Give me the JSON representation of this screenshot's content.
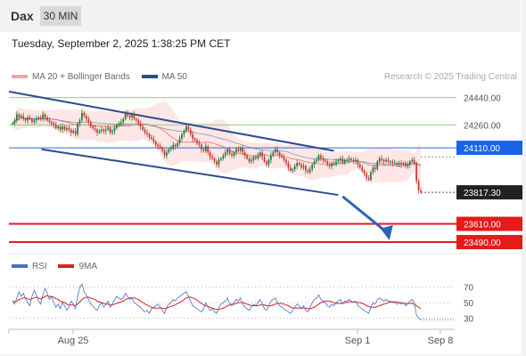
{
  "header": {
    "symbol": "Dax",
    "timeframe": "30 MIN",
    "timestamp": "Tuesday, September 2, 2025 1:38:25 PM CET"
  },
  "legend": {
    "ma20_label": "MA 20 + Bollinger Bands",
    "ma50_label": "MA 50",
    "credit": "Research © 2025 Trading Central"
  },
  "rsi_legend": {
    "rsi_label": "RSI",
    "ma_label": "9MA"
  },
  "colors": {
    "candle_up": "#1a7a3a",
    "candle_down": "#c0392b",
    "ma20": "#f08080",
    "ma50": "#2d4b8e",
    "bollinger_fill": "#fde3e3",
    "channel": "#2d4b8e",
    "resistance_green": "#8fcf7a",
    "resistance_blue": "#2a6fd1",
    "support_red": "#e31b1b",
    "label_blue": "#1a62e8",
    "label_red": "#e31b1b",
    "label_current": "#222222",
    "rsi_line": "#4a6fc1",
    "rsi_ma": "#d62020"
  },
  "chart_data": [
    {
      "type": "candlestick",
      "title": "",
      "ylim": [
        23420,
        24520
      ],
      "x_ticks": [
        "Aug 25",
        "Sep 1",
        "Sep 8"
      ],
      "current_price": {
        "value": 23817.3,
        "label": "23817.30"
      },
      "levels": [
        {
          "value": 24440.0,
          "label": "24440.00",
          "kind": "resistance",
          "color": "green"
        },
        {
          "value": 24260.0,
          "label": "24260.00",
          "kind": "resistance",
          "color": "green"
        },
        {
          "value": 24110.0,
          "label": "24110.00",
          "kind": "pivot",
          "color": "blue"
        },
        {
          "value": 23610.0,
          "label": "23610.00",
          "kind": "support",
          "color": "red"
        },
        {
          "value": 23490.0,
          "label": "23490.00",
          "kind": "support",
          "color": "red"
        }
      ],
      "channel": {
        "upper": [
          [
            0,
            24480
          ],
          [
            148,
            24090
          ]
        ],
        "lower": [
          [
            15,
            24100
          ],
          [
            150,
            23800
          ]
        ]
      },
      "forecast_arrow": [
        [
          152,
          23790
        ],
        [
          160,
          23520
        ]
      ],
      "candles_close": [
        24270,
        24290,
        24330,
        24310,
        24320,
        24300,
        24290,
        24310,
        24300,
        24280,
        24290,
        24300,
        24310,
        24300,
        24330,
        24310,
        24290,
        24280,
        24270,
        24260,
        24240,
        24250,
        24230,
        24250,
        24230,
        24240,
        24230,
        24210,
        24220,
        24200,
        24270,
        24290,
        24340,
        24320,
        24300,
        24280,
        24250,
        24240,
        24230,
        24210,
        24220,
        24230,
        24220,
        24230,
        24240,
        24210,
        24220,
        24240,
        24260,
        24270,
        24280,
        24300,
        24340,
        24320,
        24310,
        24330,
        24300,
        24290,
        24270,
        24250,
        24230,
        24210,
        24200,
        24180,
        24170,
        24150,
        24130,
        24120,
        24110,
        24090,
        24060,
        24080,
        24100,
        24110,
        24130,
        24120,
        24140,
        24170,
        24200,
        24220,
        24250,
        24230,
        24200,
        24170,
        24160,
        24140,
        24130,
        24100,
        24090,
        24120,
        24080,
        24050,
        24040,
        24020,
        24000,
        24030,
        24040,
        24060,
        24080,
        24100,
        24070,
        24060,
        24080,
        24100,
        24090,
        24110,
        24080,
        24060,
        24040,
        24020,
        24030,
        24050,
        24040,
        24060,
        24080,
        24050,
        24020,
        24000,
        24030,
        24060,
        24080,
        24100,
        24080,
        24060,
        24050,
        24030,
        24010,
        23980,
        23960,
        23970,
        23990,
        24010,
        24000,
        23980,
        23990,
        23960,
        23950,
        23970,
        24000,
        24020,
        24030,
        24060,
        24040,
        24030,
        24020,
        24000,
        23990,
        24010,
        24000,
        24020,
        24030,
        24040,
        24010,
        24030,
        24030,
        24040,
        24030,
        24020,
        24030,
        24000,
        23980,
        23960,
        23940,
        23910,
        23900,
        23950,
        23980,
        23970,
        24020,
        24040,
        24030,
        24020,
        24030,
        24020,
        24020,
        24010,
        24010,
        24000,
        24010,
        24000,
        24010,
        23990,
        24000,
        24020,
        24030,
        24010,
        23890,
        23830,
        23817.3
      ]
    },
    {
      "type": "line",
      "title": "",
      "ylim": [
        20,
        80
      ],
      "y_ticks": [
        70,
        50,
        30
      ],
      "series": [
        {
          "name": "RSI",
          "values": [
            52,
            48,
            56,
            64,
            58,
            62,
            55,
            50,
            46,
            58,
            66,
            60,
            52,
            48,
            60,
            68,
            62,
            54,
            58,
            50,
            44,
            48,
            42,
            50,
            46,
            40,
            44,
            52,
            48,
            42,
            58,
            70,
            74,
            64,
            60,
            54,
            48,
            46,
            42,
            40,
            46,
            50,
            44,
            48,
            52,
            44,
            48,
            54,
            58,
            56,
            54,
            56,
            62,
            58,
            54,
            56,
            50,
            48,
            46,
            44,
            40,
            38,
            40,
            36,
            42,
            44,
            46,
            48,
            44,
            40,
            36,
            44,
            48,
            50,
            54,
            52,
            56,
            58,
            60,
            62,
            64,
            58,
            52,
            46,
            44,
            42,
            40,
            38,
            42,
            50,
            44,
            40,
            42,
            38,
            36,
            44,
            48,
            50,
            52,
            56,
            48,
            46,
            50,
            54,
            52,
            56,
            48,
            44,
            42,
            40,
            44,
            48,
            46,
            50,
            54,
            48,
            42,
            40,
            46,
            52,
            54,
            56,
            50,
            46,
            44,
            42,
            40,
            38,
            36,
            40,
            44,
            48,
            46,
            42,
            46,
            40,
            38,
            44,
            50,
            54,
            56,
            60,
            54,
            52,
            50,
            46,
            44,
            48,
            46,
            50,
            52,
            54,
            48,
            52,
            52,
            54,
            52,
            50,
            52,
            46,
            44,
            42,
            40,
            38,
            36,
            44,
            50,
            48,
            54,
            56,
            54,
            52,
            54,
            52,
            52,
            50,
            50,
            48,
            50,
            48,
            50,
            46,
            48,
            52,
            54,
            50,
            34,
            30,
            28
          ]
        },
        {
          "name": "9MA",
          "values": [
            52,
            51,
            52,
            54,
            55,
            56,
            56,
            55,
            54,
            55,
            56,
            57,
            56,
            55,
            56,
            58,
            59,
            58,
            58,
            57,
            55,
            54,
            52,
            51,
            50,
            48,
            47,
            47,
            47,
            46,
            48,
            51,
            54,
            56,
            57,
            57,
            56,
            55,
            54,
            52,
            51,
            50,
            49,
            48,
            48,
            47,
            47,
            48,
            49,
            50,
            51,
            52,
            54,
            55,
            56,
            56,
            56,
            55,
            54,
            52,
            50,
            48,
            47,
            45,
            44,
            43,
            43,
            43,
            43,
            43,
            42,
            43,
            44,
            45,
            46,
            47,
            49,
            50,
            52,
            54,
            56,
            57,
            57,
            56,
            55,
            53,
            51,
            49,
            47,
            46,
            45,
            44,
            43,
            42,
            41,
            41,
            42,
            43,
            44,
            46,
            47,
            48,
            48,
            49,
            50,
            50,
            50,
            49,
            48,
            47,
            46,
            46,
            46,
            46,
            47,
            47,
            47,
            46,
            46,
            46,
            47,
            48,
            49,
            49,
            49,
            48,
            47,
            46,
            44,
            43,
            43,
            43,
            43,
            43,
            43,
            43,
            42,
            42,
            43,
            44,
            46,
            48,
            50,
            51,
            52,
            52,
            52,
            51,
            50,
            49,
            49,
            49,
            49,
            50,
            50,
            51,
            51,
            51,
            51,
            50,
            50,
            49,
            48,
            46,
            45,
            44,
            44,
            44,
            45,
            46,
            47,
            48,
            49,
            50,
            51,
            51,
            51,
            51,
            50,
            50,
            49,
            49,
            49,
            49,
            49,
            48,
            46,
            44,
            42
          ]
        }
      ]
    }
  ]
}
